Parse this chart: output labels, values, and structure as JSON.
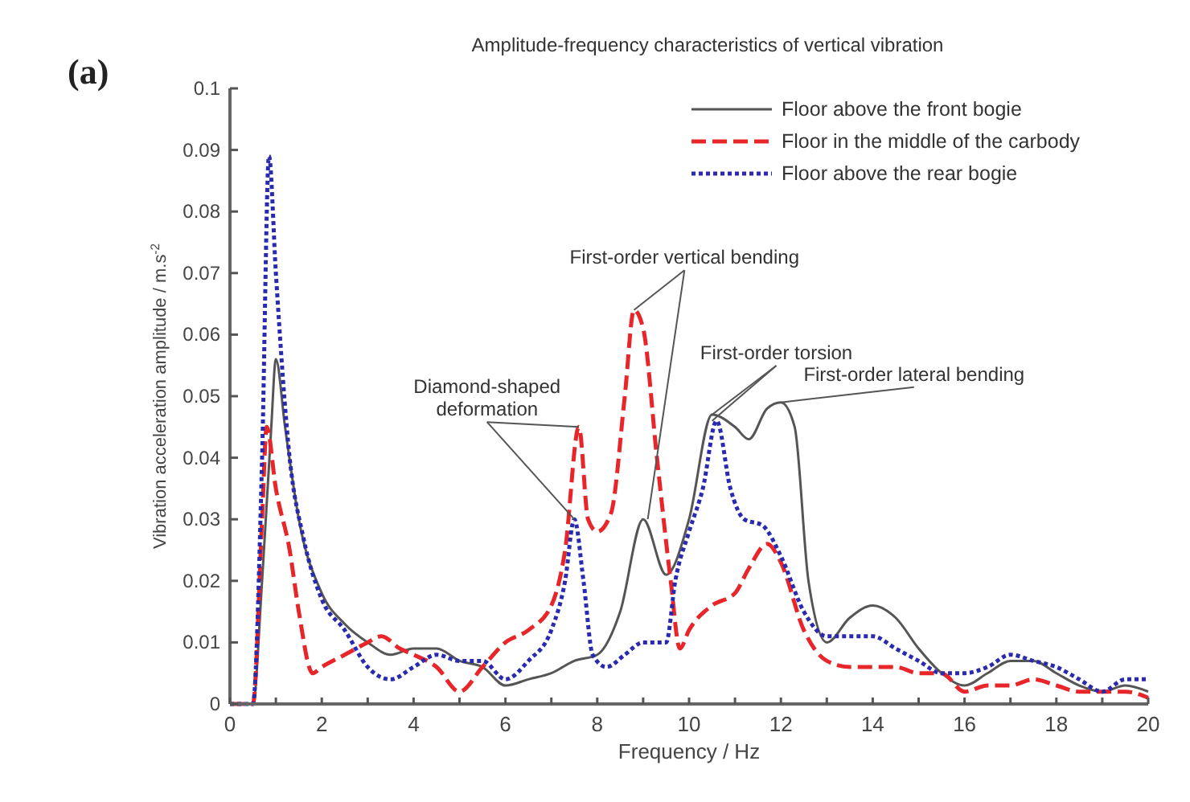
{
  "chart_data": {
    "type": "line",
    "title": "Amplitude-frequency characteristics of vertical vibration",
    "xlabel": "Frequency / Hz",
    "ylabel": "Vibration acceleration amplitude / m.s$^{-2}$",
    "annotations": [
      "(a)",
      {
        "text": "Diamond-shaped deformation",
        "x": 7.6,
        "y": 0.045
      },
      {
        "text": "First-order vertical bending",
        "x": 8.8,
        "y": 0.064
      },
      {
        "text": "First-order torsion",
        "x": 10.5,
        "y": 0.047
      },
      {
        "text": "First-order lateral bending",
        "x": 12,
        "y": 0.049
      }
    ],
    "xlim": [
      0,
      20
    ],
    "xticks": [
      0,
      {
        "value": 1,
        "label": null
      },
      2,
      {
        "value": 3,
        "label": null
      },
      4,
      {
        "value": 5,
        "label": null
      },
      6,
      {
        "value": 7,
        "label": null
      },
      8,
      {
        "value": 9,
        "label": null
      },
      10,
      {
        "value": 11,
        "label": null
      },
      12,
      {
        "value": 13,
        "label": null
      },
      14,
      {
        "value": 15,
        "label": null
      },
      16,
      {
        "value": 17,
        "label": null
      },
      18,
      {
        "value": 19,
        "label": null
      },
      20
    ],
    "ylim": [
      0,
      0.1
    ],
    "yticks": [
      0,
      0.01,
      0.02,
      0.03,
      0.04,
      0.05,
      0.06,
      0.07,
      0.08,
      0.09,
      0.1
    ],
    "legend": "top right",
    "grid": false,
    "series": [
      {
        "name": "Floor above the front bogie",
        "color": "#555555",
        "line_style": "solid",
        "x": [
          0,
          0.5,
          0.7,
          0.9,
          1.0,
          1.2,
          1.5,
          2,
          2.5,
          3,
          3.5,
          4,
          4.5,
          5,
          5.5,
          6,
          6.5,
          7,
          7.5,
          8,
          8.5,
          9,
          9.5,
          10,
          10.5,
          11,
          11.3,
          11.7,
          12,
          12.3,
          12.6,
          13,
          13.5,
          14,
          14.5,
          15,
          15.5,
          16,
          16.5,
          17,
          17.5,
          18,
          18.5,
          19,
          19.5,
          20
        ],
        "values": [
          0,
          0,
          0.02,
          0.045,
          0.056,
          0.045,
          0.03,
          0.018,
          0.013,
          0.01,
          0.008,
          0.009,
          0.009,
          0.007,
          0.006,
          0.003,
          0.004,
          0.005,
          0.007,
          0.008,
          0.015,
          0.03,
          0.021,
          0.03,
          0.047,
          0.045,
          0.043,
          0.048,
          0.049,
          0.045,
          0.02,
          0.01,
          0.014,
          0.016,
          0.014,
          0.009,
          0.005,
          0.003,
          0.005,
          0.007,
          0.007,
          0.005,
          0.003,
          0.002,
          0.003,
          0.002
        ]
      },
      {
        "name": "Floor in the middle of the carbody",
        "color": "#e8262a",
        "line_style": "dashed",
        "x": [
          0,
          0.5,
          0.7,
          0.8,
          1.0,
          1.3,
          1.5,
          1.8,
          2,
          2.5,
          3,
          3.3,
          3.7,
          4,
          4.5,
          5,
          5.5,
          6,
          6.5,
          7,
          7.3,
          7.6,
          7.8,
          8,
          8.3,
          8.6,
          8.8,
          9,
          9.3,
          9.6,
          9.8,
          10,
          10.5,
          11,
          11.3,
          11.7,
          12,
          12.5,
          13,
          13.5,
          14,
          14.5,
          15,
          15.5,
          16,
          16.5,
          17,
          17.5,
          18,
          18.5,
          19,
          19.5,
          20
        ],
        "values": [
          0,
          0,
          0.03,
          0.045,
          0.035,
          0.025,
          0.015,
          0.005,
          0.006,
          0.008,
          0.01,
          0.011,
          0.009,
          0.008,
          0.006,
          0.002,
          0.006,
          0.01,
          0.012,
          0.016,
          0.025,
          0.045,
          0.03,
          0.028,
          0.031,
          0.05,
          0.064,
          0.061,
          0.04,
          0.02,
          0.009,
          0.012,
          0.016,
          0.018,
          0.022,
          0.026,
          0.023,
          0.012,
          0.007,
          0.006,
          0.006,
          0.006,
          0.005,
          0.005,
          0.002,
          0.003,
          0.003,
          0.004,
          0.003,
          0.002,
          0.002,
          0.002,
          0.001
        ]
      },
      {
        "name": "Floor above the rear bogie",
        "color": "#2a2ab0",
        "line_style": "dotted",
        "x": [
          0,
          0.5,
          0.7,
          0.85,
          1.0,
          1.3,
          1.6,
          2,
          2.5,
          3,
          3.5,
          4,
          4.5,
          5,
          5.5,
          6,
          6.5,
          7,
          7.3,
          7.5,
          7.7,
          7.9,
          8.2,
          8.6,
          9,
          9.5,
          9.7,
          10,
          10.3,
          10.6,
          10.9,
          11.2,
          11.6,
          12,
          12.5,
          13,
          13.5,
          14,
          14.5,
          15,
          15.5,
          16,
          16.5,
          17,
          17.5,
          18,
          18.5,
          19,
          19.5,
          20
        ],
        "values": [
          0,
          0,
          0.04,
          0.089,
          0.07,
          0.04,
          0.027,
          0.017,
          0.012,
          0.006,
          0.004,
          0.006,
          0.008,
          0.007,
          0.007,
          0.004,
          0.007,
          0.012,
          0.02,
          0.03,
          0.02,
          0.008,
          0.006,
          0.008,
          0.01,
          0.01,
          0.02,
          0.028,
          0.035,
          0.046,
          0.035,
          0.03,
          0.029,
          0.024,
          0.015,
          0.011,
          0.011,
          0.011,
          0.009,
          0.007,
          0.005,
          0.005,
          0.006,
          0.008,
          0.007,
          0.006,
          0.004,
          0.002,
          0.004,
          0.004
        ]
      }
    ]
  }
}
